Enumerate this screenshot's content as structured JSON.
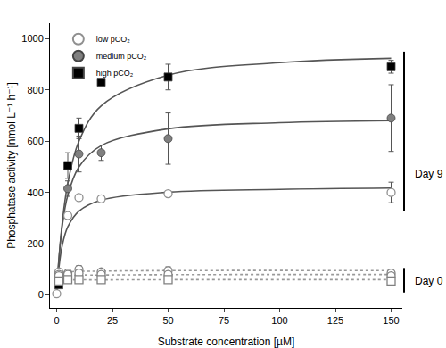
{
  "chart_data": {
    "type": "scatter",
    "x_label": "Substrate concentration [µM]",
    "y_label": "Phosphatase activity [nmol L⁻¹ h⁻¹]",
    "xlim": [
      -3,
      155
    ],
    "ylim": [
      -50,
      1060
    ],
    "xticks": [
      0,
      25,
      50,
      75,
      100,
      125,
      150
    ],
    "yticks": [
      0,
      200,
      400,
      600,
      800,
      1000
    ],
    "grid": false,
    "legend": "top left",
    "annotations": [
      "Day 9",
      "Day 0"
    ],
    "series": [
      {
        "name": "low pCO₂",
        "type": "scatter",
        "color": "#909090",
        "marker": "triangle-open",
        "x": [
          0,
          1,
          5,
          10,
          20,
          50,
          150
        ],
        "values": [
          5,
          90,
          310,
          380,
          375,
          395,
          400
        ],
        "error": [
          null,
          null,
          10,
          10,
          10,
          10,
          40
        ]
      },
      {
        "name": "medium pCO₂",
        "type": "scatter",
        "color": "#808080",
        "marker": "circle",
        "x": [
          1,
          5,
          10,
          20,
          50,
          150
        ],
        "values": [
          60,
          415,
          550,
          555,
          610,
          690
        ],
        "error": [
          null,
          30,
          70,
          30,
          100,
          130
        ]
      },
      {
        "name": "high pCO₂",
        "type": "scatter",
        "color": "#000000",
        "marker": "square",
        "x": [
          1,
          5,
          10,
          20,
          50,
          150
        ],
        "values": [
          40,
          505,
          650,
          830,
          850,
          890
        ],
        "error": [
          null,
          50,
          40,
          null,
          50,
          25
        ]
      },
      {
        "type": "line",
        "color": "#555555",
        "line_style": "solid",
        "x": [
          0,
          1,
          2.5,
          5,
          10,
          20,
          50,
          100,
          150
        ],
        "values": [
          0,
          106,
          193,
          266,
          327,
          370,
          401,
          412,
          417
        ]
      },
      {
        "type": "line",
        "color": "#555555",
        "line_style": "solid",
        "x": [
          0,
          1,
          2.5,
          5,
          10,
          20,
          50,
          100,
          150
        ],
        "values": [
          0,
          140,
          269,
          389,
          500,
          583,
          648,
          672,
          680
        ]
      },
      {
        "type": "line",
        "color": "#555555",
        "line_style": "solid",
        "x": [
          0,
          1,
          2.5,
          5,
          10,
          20,
          50,
          100,
          150
        ],
        "values": [
          0,
          137,
          282,
          436,
          600,
          738,
          857,
          906,
          923
        ]
      },
      {
        "type": "scatter",
        "color": "#808080",
        "marker": "circle-open",
        "x": [
          1,
          5,
          10,
          20,
          50,
          150
        ],
        "values": [
          80,
          85,
          100,
          90,
          95,
          85
        ],
        "error": [
          null,
          null,
          15,
          null,
          15,
          10
        ]
      },
      {
        "type": "scatter",
        "color": "#808080",
        "marker": "triangle-open",
        "x": [
          1,
          5,
          10,
          20,
          50,
          150
        ],
        "values": [
          75,
          80,
          85,
          80,
          80,
          75
        ],
        "error": [
          null,
          null,
          null,
          null,
          null,
          null
        ]
      },
      {
        "type": "scatter",
        "color": "#808080",
        "marker": "square-open",
        "x": [
          1,
          5,
          10,
          20,
          50,
          150
        ],
        "values": [
          55,
          60,
          60,
          60,
          60,
          55
        ],
        "error": [
          null,
          null,
          null,
          null,
          null,
          null
        ]
      },
      {
        "type": "line",
        "color": "#999999",
        "line_style": "dotted",
        "x": [
          0,
          1,
          5,
          20,
          150
        ],
        "values": [
          0,
          70,
          88,
          93,
          95
        ]
      },
      {
        "type": "line",
        "color": "#999999",
        "line_style": "dotted",
        "x": [
          0,
          1,
          5,
          20,
          150
        ],
        "values": [
          0,
          60,
          75,
          78,
          80
        ]
      },
      {
        "type": "line",
        "color": "#999999",
        "line_style": "dotted",
        "x": [
          0,
          1,
          5,
          20,
          150
        ],
        "values": [
          0,
          45,
          57,
          59,
          60
        ]
      }
    ]
  }
}
